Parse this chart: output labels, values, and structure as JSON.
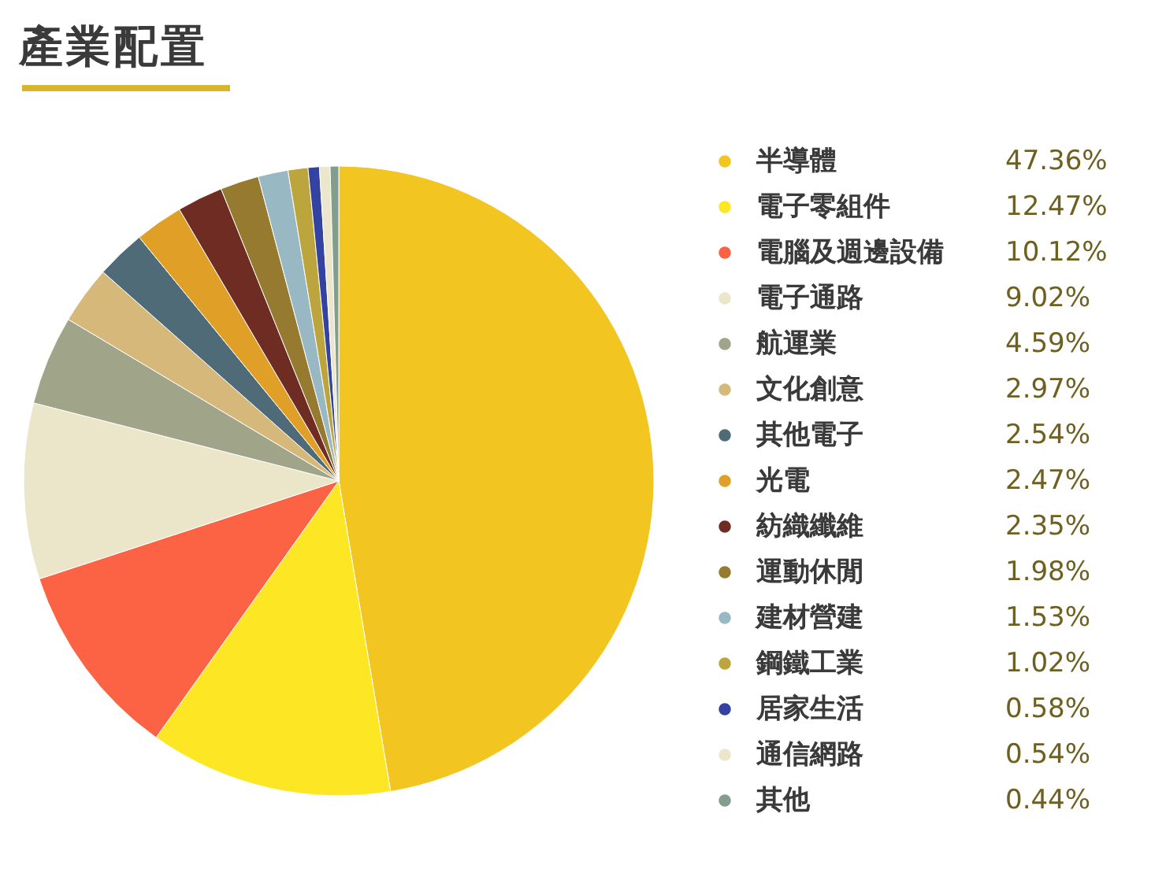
{
  "chart_data": {
    "type": "pie",
    "title": "產業配置",
    "categories": [
      "半導體",
      "電子零組件",
      "電腦及週邊設備",
      "電子通路",
      "航運業",
      "文化創意",
      "其他電子",
      "光電",
      "紡織纖維",
      "運動休閒",
      "建材營建",
      "鋼鐵工業",
      "居家生活",
      "通信網路",
      "其他"
    ],
    "values": [
      47.36,
      12.47,
      10.12,
      9.02,
      4.59,
      2.97,
      2.54,
      2.47,
      2.35,
      1.98,
      1.53,
      1.02,
      0.58,
      0.54,
      0.44
    ],
    "value_labels": [
      "47.36%",
      "12.47%",
      "10.12%",
      "9.02%",
      "4.59%",
      "2.97%",
      "2.54%",
      "2.47%",
      "2.35%",
      "1.98%",
      "1.53%",
      "1.02%",
      "0.58%",
      "0.54%",
      "0.44%"
    ],
    "colors": [
      "#f2c521",
      "#fde725",
      "#fb6344",
      "#ebe5c9",
      "#a0a488",
      "#d6b97a",
      "#4f6b78",
      "#e09f27",
      "#6e2c22",
      "#957a2f",
      "#98b8c3",
      "#bda53e",
      "#3443a0",
      "#ebe6cc",
      "#839e8f"
    ],
    "legend": "right"
  }
}
